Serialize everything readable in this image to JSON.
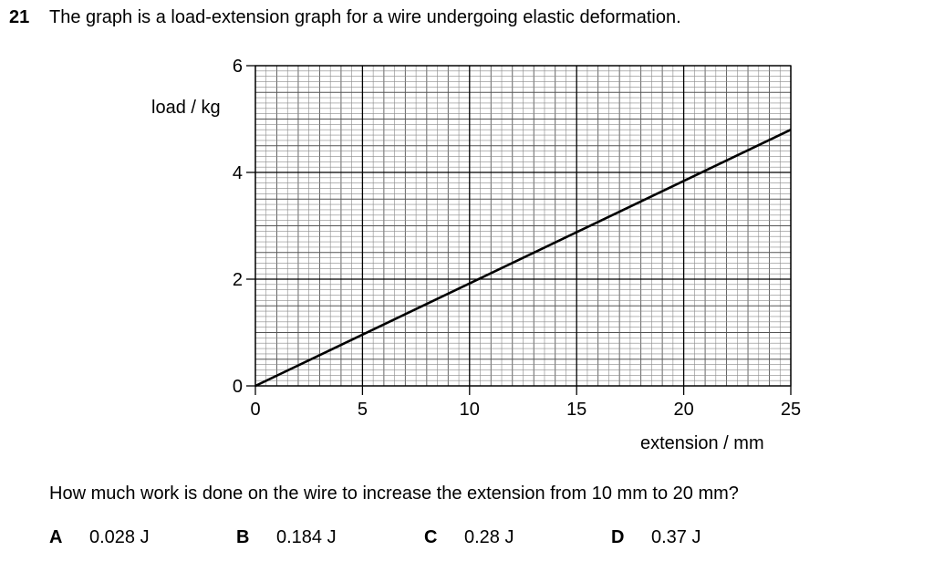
{
  "question": {
    "number": "21",
    "intro": "The graph is a load-extension graph for a wire undergoing elastic deformation.",
    "prompt": "How much work is done on the wire to increase the extension from 10 mm to 20 mm?",
    "options": [
      {
        "letter": "A",
        "text": "0.028 J"
      },
      {
        "letter": "B",
        "text": "0.184 J"
      },
      {
        "letter": "C",
        "text": "0.28 J"
      },
      {
        "letter": "D",
        "text": "0.37 J"
      }
    ]
  },
  "chart_data": {
    "type": "line",
    "title": "",
    "xlabel": "extension / mm",
    "ylabel": "load / kg",
    "xlim": [
      0,
      25
    ],
    "ylim": [
      0,
      6
    ],
    "x_ticks": [
      0,
      5,
      10,
      15,
      20,
      25
    ],
    "y_ticks": [
      0,
      2,
      4,
      6
    ],
    "grid": true,
    "series": [
      {
        "x": [
          0,
          25
        ],
        "y": [
          0,
          4.8
        ]
      }
    ]
  }
}
